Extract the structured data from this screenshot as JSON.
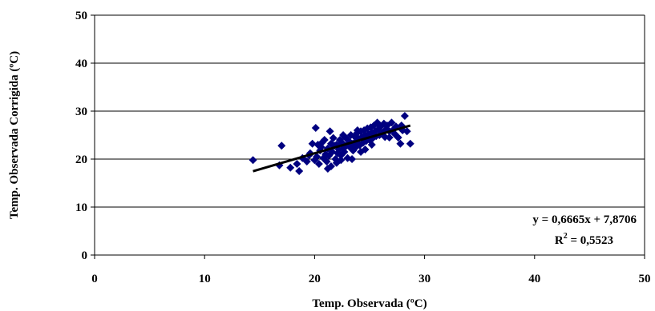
{
  "chart_data": {
    "type": "scatter",
    "title": "",
    "xlabel": "Temp. Observada (ºC)",
    "ylabel": "Temp. Observada Corrigida (ºC)",
    "xlim": [
      0,
      50
    ],
    "ylim": [
      0,
      50
    ],
    "xticks": [
      "0",
      "10",
      "20",
      "30",
      "40",
      "50"
    ],
    "yticks": [
      "0",
      "10",
      "20",
      "30",
      "40",
      "50"
    ],
    "grid": "horizontal",
    "legend": "none",
    "marker": "diamond",
    "colors": {
      "points": "#000080",
      "trendline": "#000000"
    },
    "trendline": {
      "slope": 0.6665,
      "intercept": 7.8706,
      "x_range": [
        14.4,
        28.7
      ]
    },
    "annotation": {
      "equation": "y = 0,6665x + 7,8706",
      "r2_prefix": "R",
      "r2_exp": "2",
      "r2_value": " = 0,5523"
    },
    "points": [
      [
        14.4,
        19.8
      ],
      [
        17.0,
        22.8
      ],
      [
        16.8,
        18.7
      ],
      [
        17.8,
        18.2
      ],
      [
        18.4,
        19.0
      ],
      [
        18.6,
        17.5
      ],
      [
        18.9,
        20.2
      ],
      [
        19.3,
        19.5
      ],
      [
        19.6,
        21.2
      ],
      [
        19.8,
        23.2
      ],
      [
        20.1,
        26.5
      ],
      [
        20.0,
        19.8
      ],
      [
        20.2,
        20.5
      ],
      [
        20.4,
        19.0
      ],
      [
        20.5,
        21.8
      ],
      [
        20.6,
        22.5
      ],
      [
        20.8,
        20.2
      ],
      [
        21.0,
        21.0
      ],
      [
        21.1,
        19.5
      ],
      [
        21.2,
        22.2
      ],
      [
        21.3,
        20.7
      ],
      [
        21.4,
        25.8
      ],
      [
        21.5,
        18.5
      ],
      [
        21.6,
        21.5
      ],
      [
        21.8,
        22.8
      ],
      [
        21.9,
        20.0
      ],
      [
        22.0,
        23.0
      ],
      [
        22.1,
        21.2
      ],
      [
        22.2,
        22.0
      ],
      [
        22.3,
        24.0
      ],
      [
        22.4,
        20.8
      ],
      [
        22.5,
        23.4
      ],
      [
        22.6,
        22.2
      ],
      [
        22.7,
        21.5
      ],
      [
        22.8,
        24.5
      ],
      [
        22.9,
        22.8
      ],
      [
        23.0,
        20.2
      ],
      [
        23.1,
        23.8
      ],
      [
        23.2,
        22.5
      ],
      [
        23.3,
        25.0
      ],
      [
        23.4,
        23.2
      ],
      [
        23.5,
        21.8
      ],
      [
        23.6,
        24.8
      ],
      [
        23.7,
        23.6
      ],
      [
        23.8,
        22.6
      ],
      [
        23.9,
        25.5
      ],
      [
        24.0,
        24.2
      ],
      [
        24.1,
        22.9
      ],
      [
        24.2,
        25.8
      ],
      [
        24.3,
        24.6
      ],
      [
        24.4,
        23.4
      ],
      [
        24.5,
        26.0
      ],
      [
        24.6,
        25.0
      ],
      [
        24.7,
        23.8
      ],
      [
        24.8,
        26.4
      ],
      [
        24.9,
        25.2
      ],
      [
        25.0,
        24.0
      ],
      [
        25.1,
        26.6
      ],
      [
        25.2,
        25.5
      ],
      [
        25.3,
        24.4
      ],
      [
        25.4,
        27.0
      ],
      [
        25.5,
        25.8
      ],
      [
        25.6,
        24.8
      ],
      [
        25.7,
        27.6
      ],
      [
        25.8,
        26.2
      ],
      [
        25.9,
        25.0
      ],
      [
        26.0,
        26.8
      ],
      [
        26.2,
        25.5
      ],
      [
        26.3,
        27.4
      ],
      [
        26.4,
        24.6
      ],
      [
        26.5,
        26.2
      ],
      [
        26.6,
        27.0
      ],
      [
        26.8,
        25.8
      ],
      [
        27.0,
        27.6
      ],
      [
        27.1,
        26.0
      ],
      [
        27.3,
        25.2
      ],
      [
        27.4,
        26.8
      ],
      [
        27.6,
        24.5
      ],
      [
        27.8,
        23.2
      ],
      [
        27.9,
        27.0
      ],
      [
        28.0,
        26.0
      ],
      [
        28.2,
        29.0
      ],
      [
        28.4,
        25.8
      ],
      [
        28.7,
        23.2
      ],
      [
        20.3,
        23.0
      ],
      [
        20.7,
        23.5
      ],
      [
        21.7,
        24.4
      ],
      [
        22.4,
        19.8
      ],
      [
        22.0,
        19.2
      ],
      [
        21.2,
        18.0
      ],
      [
        23.4,
        20.0
      ],
      [
        24.6,
        22.0
      ],
      [
        25.2,
        23.0
      ],
      [
        26.8,
        24.5
      ],
      [
        19.5,
        20.8
      ],
      [
        20.9,
        24.0
      ],
      [
        22.6,
        25.0
      ],
      [
        23.9,
        26.0
      ],
      [
        21.5,
        23.2
      ],
      [
        24.2,
        21.5
      ]
    ]
  }
}
